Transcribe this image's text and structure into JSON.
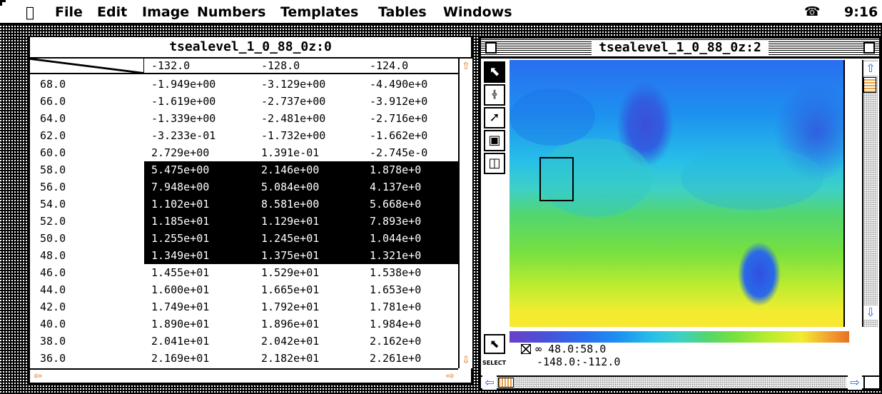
{
  "menubar": {
    "apple": "",
    "items": [
      "File",
      "Edit",
      "Image",
      "Numbers",
      "Templates",
      "Tables",
      "Windows"
    ],
    "clock": "9:16 I",
    "phone_icon": "telephone-icon"
  },
  "table_window": {
    "title": "tsealevel_1_0_88_0z:0",
    "columns": [
      "-132.0",
      "-128.0",
      "-124.0"
    ],
    "rows": [
      {
        "label": "68.0",
        "values": [
          "-1.949e+00",
          "-3.129e+00",
          "-4.490e+0"
        ],
        "selected": false
      },
      {
        "label": "66.0",
        "values": [
          "-1.619e+00",
          "-2.737e+00",
          "-3.912e+0"
        ],
        "selected": false
      },
      {
        "label": "64.0",
        "values": [
          "-1.339e+00",
          "-2.481e+00",
          "-2.716e+0"
        ],
        "selected": false
      },
      {
        "label": "62.0",
        "values": [
          "-3.233e-01",
          "-1.732e+00",
          "-1.662e+0"
        ],
        "selected": false
      },
      {
        "label": "60.0",
        "values": [
          "2.729e+00",
          "1.391e-01",
          "-2.745e-0"
        ],
        "selected": false
      },
      {
        "label": "58.0",
        "values": [
          "5.475e+00",
          "2.146e+00",
          "1.878e+0"
        ],
        "selected": true
      },
      {
        "label": "56.0",
        "values": [
          "7.948e+00",
          "5.084e+00",
          "4.137e+0"
        ],
        "selected": true
      },
      {
        "label": "54.0",
        "values": [
          "1.102e+01",
          "8.581e+00",
          "5.668e+0"
        ],
        "selected": true
      },
      {
        "label": "52.0",
        "values": [
          "1.185e+01",
          "1.129e+01",
          "7.893e+0"
        ],
        "selected": true
      },
      {
        "label": "50.0",
        "values": [
          "1.255e+01",
          "1.245e+01",
          "1.044e+0"
        ],
        "selected": true
      },
      {
        "label": "48.0",
        "values": [
          "1.349e+01",
          "1.375e+01",
          "1.321e+0"
        ],
        "selected": true
      },
      {
        "label": "46.0",
        "values": [
          "1.455e+01",
          "1.529e+01",
          "1.538e+0"
        ],
        "selected": false
      },
      {
        "label": "44.0",
        "values": [
          "1.600e+01",
          "1.665e+01",
          "1.653e+0"
        ],
        "selected": false
      },
      {
        "label": "42.0",
        "values": [
          "1.749e+01",
          "1.792e+01",
          "1.781e+0"
        ],
        "selected": false
      },
      {
        "label": "40.0",
        "values": [
          "1.890e+01",
          "1.896e+01",
          "1.984e+0"
        ],
        "selected": false
      },
      {
        "label": "38.0",
        "values": [
          "2.041e+01",
          "2.042e+01",
          "2.162e+0"
        ],
        "selected": false
      },
      {
        "label": "36.0",
        "values": [
          "2.169e+01",
          "2.182e+01",
          "2.261e+0"
        ],
        "selected": false
      }
    ]
  },
  "image_window": {
    "title": "tsealevel_1_0_88_0z:2",
    "tools": [
      "arrow-tool-icon",
      "ruler-tool-icon",
      "line-tool-icon",
      "zoom-tool-icon",
      "frame-tool-icon"
    ],
    "select_label": "SELECT",
    "info_line1": "∞ 48.0:58.0",
    "info_line2": "-148.0:-112.0"
  }
}
